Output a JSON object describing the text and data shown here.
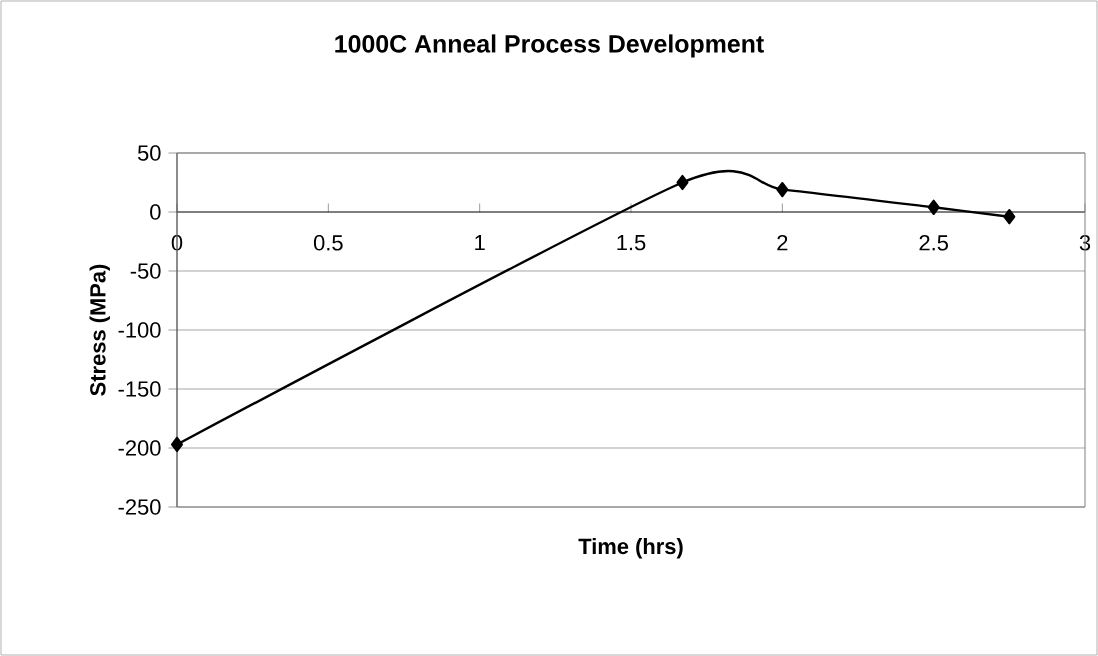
{
  "chart_data": {
    "type": "line",
    "title": "1000C Anneal Process Development",
    "xlabel": "Time (hrs)",
    "ylabel": "Stress (MPa)",
    "x": [
      0,
      1.67,
      2,
      2.5,
      2.75
    ],
    "series": [
      {
        "color": "#000000",
        "values": [
          -197,
          25,
          19,
          4,
          -4
        ]
      }
    ],
    "xlim": [
      0,
      3
    ],
    "ylim": [
      -250,
      50
    ],
    "xticks": [
      0,
      0.5,
      1,
      1.5,
      2,
      2.5,
      3
    ],
    "yticks": [
      -250,
      -200,
      -150,
      -100,
      -50,
      0,
      50
    ],
    "grid": "y",
    "marker": "diamond",
    "line_style": "solid"
  }
}
